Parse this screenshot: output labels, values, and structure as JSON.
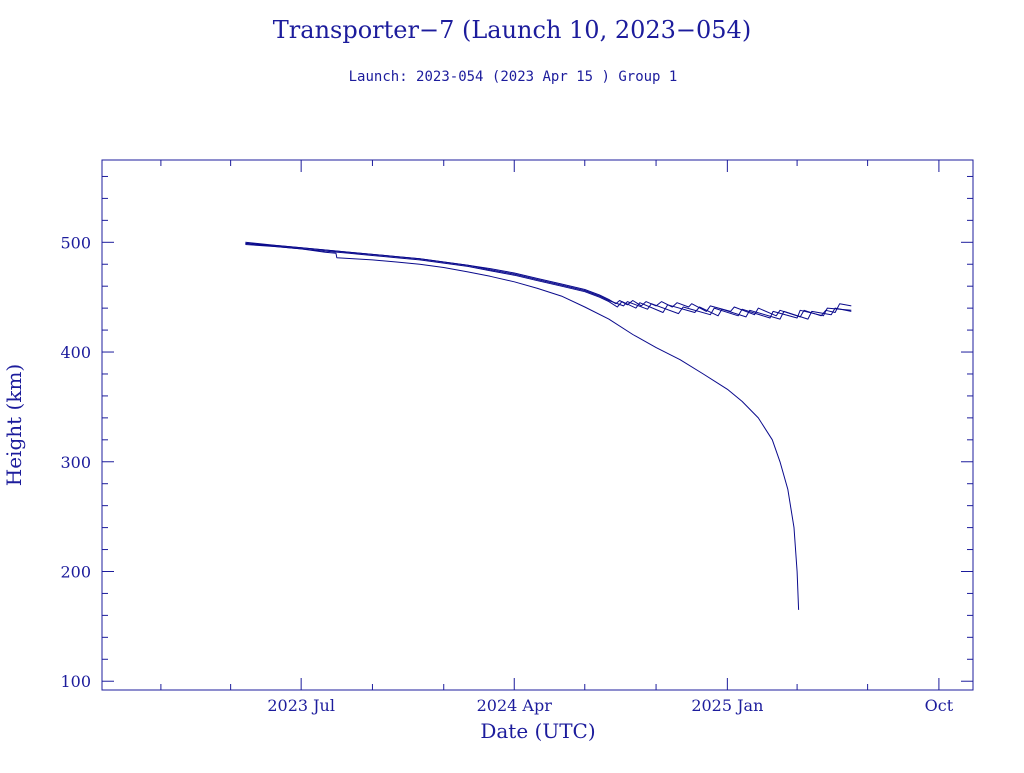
{
  "chart_data": {
    "type": "line",
    "title": "Transporter−7 (Launch 10, 2023−054)",
    "subtitle": "Launch: 2023-054  (2023 Apr 15 )  Group 1",
    "xlabel": "Date (UTC)",
    "ylabel": "Height (km)",
    "xlim": [
      "2022-10-17",
      "2025-11-14"
    ],
    "ylim": [
      92,
      575
    ],
    "x_ticks": [
      {
        "date": "2023-07-01",
        "label": "2023 Jul"
      },
      {
        "date": "2024-04-01",
        "label": "2024 Apr"
      },
      {
        "date": "2025-01-01",
        "label": "2025 Jan"
      },
      {
        "date": "2025-10-01",
        "label": "Oct"
      }
    ],
    "y_ticks": [
      100,
      200,
      300,
      400,
      500
    ],
    "grid": false,
    "legend": "none",
    "colors": {
      "axis": "#1c1c9c",
      "series": "#0a0a8c"
    },
    "series": [
      {
        "points": [
          [
            "2023-04-20",
            500
          ],
          [
            "2023-06-01",
            497
          ],
          [
            "2023-07-01",
            495
          ],
          [
            "2023-08-01",
            493
          ],
          [
            "2023-09-01",
            491
          ],
          [
            "2023-10-01",
            489
          ],
          [
            "2023-11-01",
            487
          ],
          [
            "2023-12-01",
            485
          ],
          [
            "2024-01-01",
            482
          ],
          [
            "2024-02-01",
            479
          ],
          [
            "2024-03-01",
            476
          ],
          [
            "2024-04-01",
            472
          ],
          [
            "2024-05-01",
            467
          ],
          [
            "2024-06-01",
            462
          ],
          [
            "2024-07-01",
            457
          ],
          [
            "2024-07-20",
            452
          ],
          [
            "2024-08-01",
            448
          ],
          [
            "2024-08-10",
            444
          ],
          [
            "2024-08-15",
            447
          ],
          [
            "2024-08-25",
            443
          ],
          [
            "2024-09-01",
            447
          ],
          [
            "2024-09-12",
            442
          ],
          [
            "2024-09-18",
            446
          ],
          [
            "2024-10-01",
            442
          ],
          [
            "2024-10-08",
            446
          ],
          [
            "2024-10-22",
            441
          ],
          [
            "2024-10-28",
            445
          ],
          [
            "2024-11-12",
            441
          ],
          [
            "2024-11-16",
            444
          ],
          [
            "2024-12-05",
            437
          ],
          [
            "2024-12-10",
            442
          ],
          [
            "2025-01-05",
            437
          ],
          [
            "2025-01-10",
            441
          ],
          [
            "2025-02-05",
            434
          ],
          [
            "2025-02-10",
            440
          ],
          [
            "2025-03-05",
            433
          ],
          [
            "2025-03-10",
            438
          ],
          [
            "2025-04-05",
            432
          ],
          [
            "2025-04-10",
            438
          ],
          [
            "2025-05-02",
            433
          ],
          [
            "2025-05-08",
            438
          ],
          [
            "2025-05-20",
            436
          ],
          [
            "2025-05-26",
            444
          ],
          [
            "2025-06-10",
            442
          ]
        ]
      },
      {
        "points": [
          [
            "2023-04-20",
            498
          ],
          [
            "2023-06-01",
            496
          ],
          [
            "2023-07-01",
            494
          ],
          [
            "2023-08-01",
            492
          ],
          [
            "2023-09-01",
            490
          ],
          [
            "2023-10-01",
            488
          ],
          [
            "2023-11-01",
            486
          ],
          [
            "2023-12-01",
            484
          ],
          [
            "2024-01-01",
            481
          ],
          [
            "2024-02-01",
            478
          ],
          [
            "2024-03-01",
            474
          ],
          [
            "2024-04-01",
            470
          ],
          [
            "2024-05-01",
            465
          ],
          [
            "2024-06-01",
            460
          ],
          [
            "2024-07-01",
            455
          ],
          [
            "2024-07-20",
            450
          ],
          [
            "2024-08-01",
            446
          ],
          [
            "2024-08-12",
            441
          ],
          [
            "2024-08-18",
            446
          ],
          [
            "2024-09-05",
            440
          ],
          [
            "2024-09-10",
            445
          ],
          [
            "2024-10-10",
            436
          ],
          [
            "2024-10-16",
            443
          ],
          [
            "2024-11-20",
            436
          ],
          [
            "2024-11-26",
            441
          ],
          [
            "2024-12-20",
            433
          ],
          [
            "2024-12-25",
            439
          ],
          [
            "2025-01-25",
            432
          ],
          [
            "2025-01-30",
            438
          ],
          [
            "2025-03-10",
            430
          ],
          [
            "2025-03-15",
            437
          ],
          [
            "2025-04-15",
            430
          ],
          [
            "2025-04-20",
            437
          ],
          [
            "2025-05-15",
            434
          ],
          [
            "2025-05-20",
            440
          ],
          [
            "2025-06-10",
            437
          ]
        ]
      },
      {
        "points": [
          [
            "2023-04-20",
            499
          ],
          [
            "2023-06-01",
            497
          ],
          [
            "2023-07-01",
            495
          ],
          [
            "2023-08-01",
            493
          ],
          [
            "2023-09-01",
            491
          ],
          [
            "2023-10-01",
            489
          ],
          [
            "2023-11-01",
            487
          ],
          [
            "2023-12-01",
            485
          ],
          [
            "2024-01-01",
            482
          ],
          [
            "2024-02-01",
            479
          ],
          [
            "2024-03-01",
            475
          ],
          [
            "2024-04-01",
            471
          ],
          [
            "2024-05-01",
            466
          ],
          [
            "2024-06-01",
            461
          ],
          [
            "2024-07-01",
            456
          ],
          [
            "2024-07-20",
            451
          ],
          [
            "2024-08-01",
            447
          ],
          [
            "2024-08-20",
            442
          ],
          [
            "2024-08-25",
            446
          ],
          [
            "2024-09-20",
            439
          ],
          [
            "2024-09-25",
            444
          ],
          [
            "2024-10-30",
            435
          ],
          [
            "2024-11-05",
            441
          ],
          [
            "2024-12-10",
            434
          ],
          [
            "2024-12-15",
            440
          ],
          [
            "2025-01-15",
            433
          ],
          [
            "2025-01-20",
            439
          ],
          [
            "2025-02-25",
            431
          ],
          [
            "2025-03-01",
            437
          ],
          [
            "2025-04-01",
            431
          ],
          [
            "2025-04-05",
            438
          ],
          [
            "2025-05-05",
            433
          ],
          [
            "2025-05-10",
            440
          ],
          [
            "2025-06-10",
            438
          ]
        ]
      },
      {
        "points": [
          [
            "2023-04-20",
            499
          ],
          [
            "2023-06-01",
            496
          ],
          [
            "2023-07-01",
            494
          ],
          [
            "2023-08-01",
            491
          ],
          [
            "2023-08-15",
            490
          ],
          [
            "2023-08-16",
            486
          ],
          [
            "2023-10-01",
            484
          ],
          [
            "2023-11-01",
            482
          ],
          [
            "2023-12-01",
            480
          ],
          [
            "2024-01-01",
            477
          ],
          [
            "2024-02-01",
            473
          ],
          [
            "2024-03-01",
            469
          ],
          [
            "2024-04-01",
            464
          ],
          [
            "2024-05-01",
            458
          ],
          [
            "2024-06-01",
            451
          ],
          [
            "2024-07-01",
            441
          ],
          [
            "2024-08-01",
            430
          ],
          [
            "2024-09-01",
            416
          ],
          [
            "2024-10-01",
            404
          ],
          [
            "2024-11-01",
            393
          ],
          [
            "2024-12-01",
            380
          ],
          [
            "2025-01-01",
            366
          ],
          [
            "2025-01-20",
            355
          ],
          [
            "2025-02-10",
            340
          ],
          [
            "2025-02-28",
            320
          ],
          [
            "2025-03-10",
            300
          ],
          [
            "2025-03-20",
            275
          ],
          [
            "2025-03-28",
            240
          ],
          [
            "2025-04-01",
            200
          ],
          [
            "2025-04-03",
            165
          ]
        ]
      }
    ]
  }
}
